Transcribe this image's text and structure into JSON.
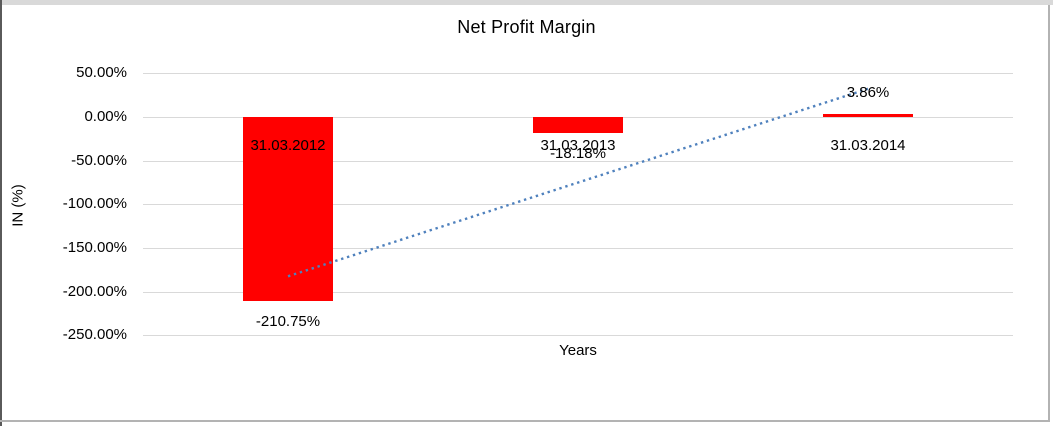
{
  "frame": {
    "background": "#ffffff",
    "border_top_color": "#d9d9d9",
    "border_side_color": "#b3b3b3"
  },
  "chart_data": {
    "type": "bar",
    "title": "Net Profit Margin",
    "xlabel": "Years",
    "ylabel": "IN (%)",
    "categories": [
      "31.03.2012",
      "31.03.2013",
      "31.03.2014"
    ],
    "values": [
      -210.75,
      -18.18,
      3.86
    ],
    "value_labels": [
      "-210.75%",
      "-18.18%",
      "3.86%"
    ],
    "ytick_values": [
      50,
      0,
      -50,
      -100,
      -150,
      -200,
      -250
    ],
    "ytick_labels": [
      "50.00%",
      "0.00%",
      "-50.00%",
      "-100.00%",
      "-150.00%",
      "-200.00%",
      "-250.00%"
    ],
    "ylim": [
      -250,
      50
    ],
    "grid": true,
    "legend": "none",
    "bar_color": "#ff0000",
    "gridline_color": "#d9d9d9",
    "text_color": "#000000",
    "trendline": {
      "type": "linear",
      "style": "dotted",
      "color": "#4f81bd",
      "start_category_index": 0,
      "end_category_index": 2,
      "start_value": -182.3,
      "end_value": 32.3
    }
  }
}
